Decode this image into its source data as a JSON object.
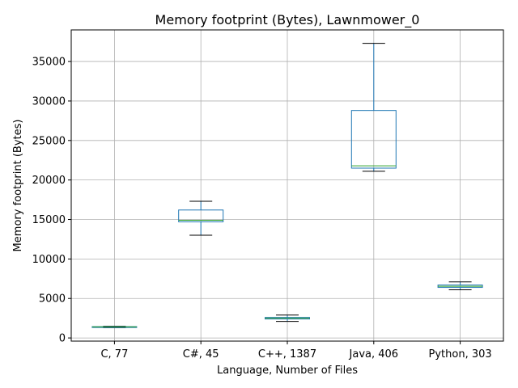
{
  "chart_data": {
    "type": "box",
    "title": "Memory footprint (Bytes), Lawnmower_0",
    "xlabel": "Language, Number of Files",
    "ylabel": "Memory footprint (Bytes)",
    "ylim": [
      -400,
      39000
    ],
    "yticks": [
      0,
      5000,
      10000,
      15000,
      20000,
      25000,
      30000,
      35000
    ],
    "grid": true,
    "categories": [
      "C, 77",
      "C#, 45",
      "C++, 1387",
      "Java, 406",
      "Python, 303"
    ],
    "boxes": [
      {
        "whislo": 1300,
        "q1": 1350,
        "med": 1400,
        "q3": 1430,
        "whishi": 1480
      },
      {
        "whislo": 13000,
        "q1": 14700,
        "med": 14900,
        "q3": 16200,
        "whishi": 17300
      },
      {
        "whislo": 2100,
        "q1": 2400,
        "med": 2500,
        "q3": 2600,
        "whishi": 2900
      },
      {
        "whislo": 21100,
        "q1": 21500,
        "med": 21800,
        "q3": 28800,
        "whishi": 37300
      },
      {
        "whislo": 6100,
        "q1": 6400,
        "med": 6550,
        "q3": 6700,
        "whishi": 7100
      }
    ],
    "colors": {
      "box": "#1f77b4",
      "median": "#2ca02c",
      "cap": "#000000",
      "grid": "#b0b0b0"
    }
  }
}
